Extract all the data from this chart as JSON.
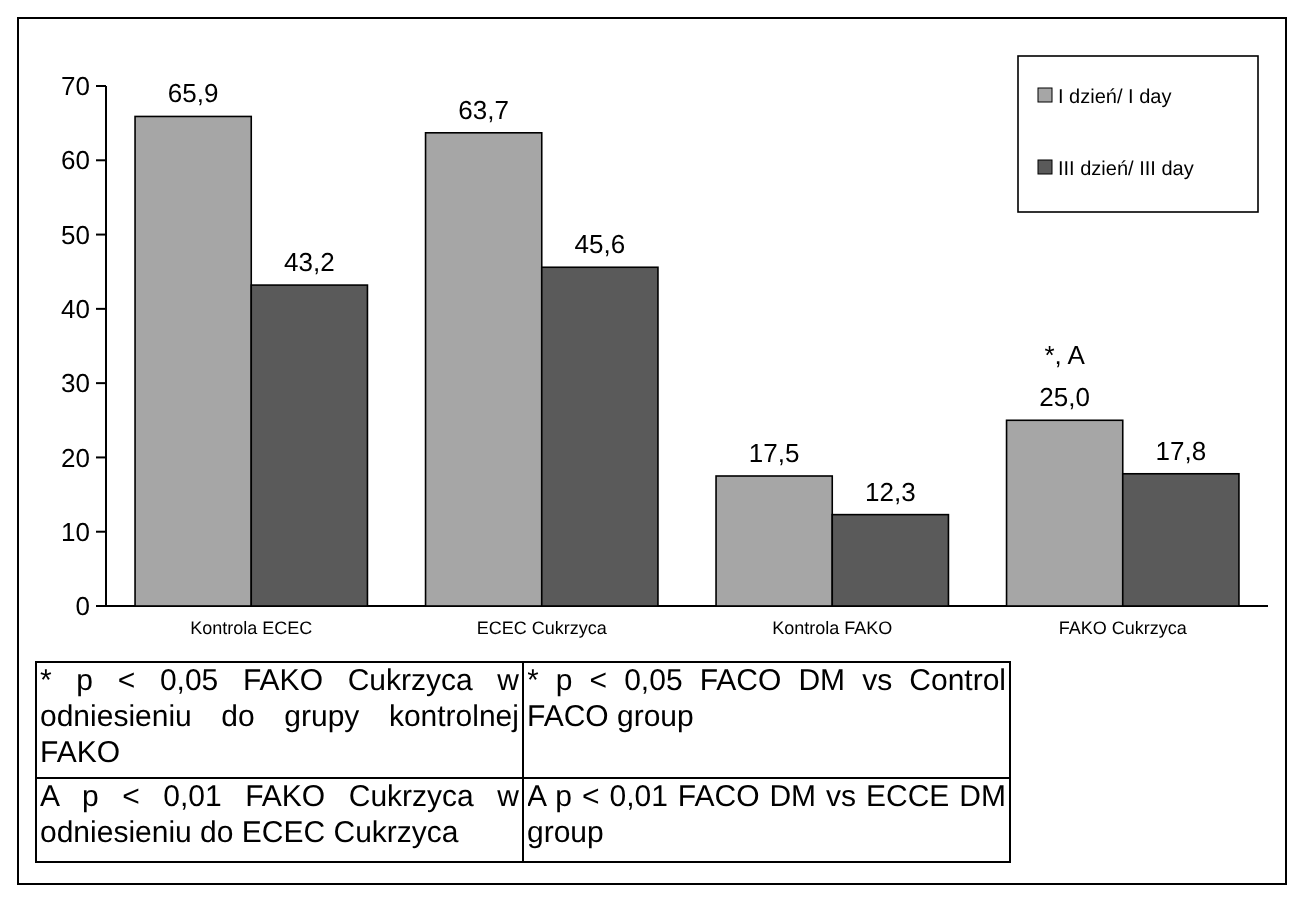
{
  "chart_data": {
    "type": "bar",
    "categories": [
      "Kontrola ECEC",
      "ECEC Cukrzyca",
      "Kontrola FAKO",
      "FAKO Cukrzyca"
    ],
    "series": [
      {
        "name": "I dzień/ I day",
        "color": "#a6a6a6",
        "values": [
          65.9,
          63.7,
          17.5,
          25.0
        ],
        "value_labels": [
          "65,9",
          "63,7",
          "17,5",
          "25,0"
        ]
      },
      {
        "name": "III dzień/ III day",
        "color": "#5a5a5a",
        "values": [
          43.2,
          45.6,
          12.3,
          17.8
        ],
        "value_labels": [
          "43,2",
          "45,6",
          "12,3",
          "17,8"
        ]
      }
    ],
    "ylim": [
      0,
      70
    ],
    "yticks": [
      0,
      10,
      20,
      30,
      40,
      50,
      60,
      70
    ],
    "grid": false,
    "legend": "top right",
    "annotations": [
      {
        "text": "*, A",
        "x": "FAKO Cukrzyca",
        "y": 25.0
      },
      "* p < 0,05 FAKO Cukrzyca w odniesieniu do grupy kontrolnej FAKO",
      "* p < 0,05 FACO DM vs Control FACO group",
      "A p < 0,01 FAKO Cukrzyca w odniesieniu do ECEC Cukrzyca",
      "A p < 0,01 FACO DM vs ECCE DM group"
    ]
  }
}
